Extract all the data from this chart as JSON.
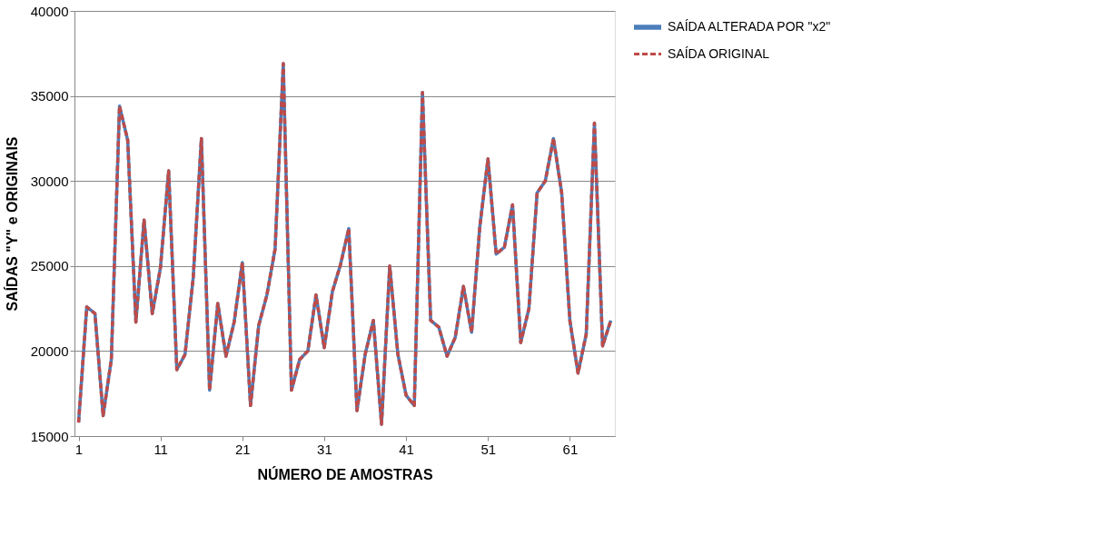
{
  "chart_data": {
    "type": "line",
    "xlabel": "NÚMERO DE AMOSTRAS",
    "ylabel": "SAÍDAS \"Y\" e ORIGINAIS",
    "x": [
      1,
      2,
      3,
      4,
      5,
      6,
      7,
      8,
      9,
      10,
      11,
      12,
      13,
      14,
      15,
      16,
      17,
      18,
      19,
      20,
      21,
      22,
      23,
      24,
      25,
      26,
      27,
      28,
      29,
      30,
      31,
      32,
      33,
      34,
      35,
      36,
      37,
      38,
      39,
      40,
      41,
      42,
      43,
      44,
      45,
      46,
      47,
      48,
      49,
      50,
      51,
      52,
      53,
      54,
      55,
      56,
      57,
      58,
      59,
      60,
      61,
      62,
      63,
      64,
      65,
      66
    ],
    "series": [
      {
        "name": "SAÍDA ALTERADA  POR \"x2\"",
        "color": "#4a7ebb",
        "line_style": "solid",
        "values": [
          15800,
          22600,
          22200,
          16200,
          19500,
          34400,
          32400,
          21700,
          27700,
          22200,
          24900,
          30600,
          18900,
          19800,
          24300,
          32500,
          17700,
          22800,
          19700,
          21700,
          25200,
          16800,
          21500,
          23300,
          26000,
          36900,
          17700,
          19500,
          20000,
          23300,
          20200,
          23500,
          25100,
          27200,
          16500,
          19800,
          21800,
          15700,
          25000,
          19800,
          17400,
          16800,
          35200,
          21800,
          21400,
          19700,
          20800,
          23800,
          21100,
          27300,
          31300,
          25700,
          26100,
          28600,
          20500,
          22500,
          29300,
          30000,
          32500,
          29300,
          21800,
          18700,
          21000,
          33400,
          20300,
          21800
        ]
      },
      {
        "name": "SAÍDA ORIGINAL",
        "color": "#be4b48",
        "line_style": "dashed",
        "values": [
          15800,
          22600,
          22200,
          16200,
          19500,
          34400,
          32400,
          21700,
          27700,
          22200,
          24900,
          30600,
          18900,
          19800,
          24300,
          32500,
          17700,
          22800,
          19700,
          21700,
          25200,
          16800,
          21500,
          23300,
          26000,
          36900,
          17700,
          19500,
          20000,
          23300,
          20200,
          23500,
          25100,
          27200,
          16500,
          19800,
          21800,
          15700,
          25000,
          19800,
          17400,
          16800,
          35200,
          21800,
          21400,
          19700,
          20800,
          23800,
          21100,
          27300,
          31300,
          25700,
          26100,
          28600,
          20500,
          22500,
          29300,
          30000,
          32500,
          29300,
          21800,
          18700,
          21000,
          33400,
          20300,
          21800
        ]
      }
    ],
    "xlim": [
      0.5,
      66.5
    ],
    "xticks": [
      1,
      11,
      21,
      31,
      41,
      51,
      61
    ],
    "ylim": [
      15000,
      40000
    ],
    "yticks": [
      15000,
      20000,
      25000,
      30000,
      35000,
      40000
    ],
    "grid": "y",
    "legend": "right",
    "marker": "none"
  }
}
